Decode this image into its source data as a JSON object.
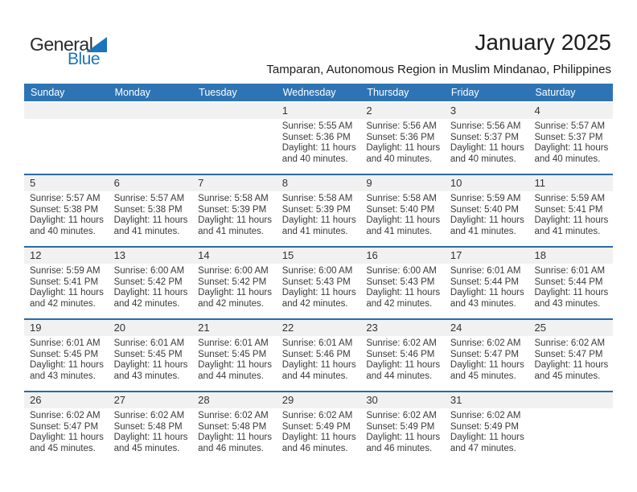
{
  "page": {
    "title": "January 2025",
    "subtitle": "Tamparan, Autonomous Region in Muslim Mindanao, Philippines"
  },
  "logo": {
    "part1": "General",
    "part2": "Blue"
  },
  "colors": {
    "header_bg": "#2E74B5",
    "divider": "#2A6BA8",
    "strip": "#F1F1F1",
    "logo_blue": "#1B75BC",
    "text_dark": "#3A3A3A"
  },
  "calendar": {
    "day_headers": [
      "Sunday",
      "Monday",
      "Tuesday",
      "Wednesday",
      "Thursday",
      "Friday",
      "Saturday"
    ],
    "weeks": [
      [
        null,
        null,
        null,
        {
          "n": "1",
          "lines": [
            "Sunrise: 5:55 AM",
            "Sunset: 5:36 PM",
            "Daylight: 11 hours",
            "and 40 minutes."
          ]
        },
        {
          "n": "2",
          "lines": [
            "Sunrise: 5:56 AM",
            "Sunset: 5:36 PM",
            "Daylight: 11 hours",
            "and 40 minutes."
          ]
        },
        {
          "n": "3",
          "lines": [
            "Sunrise: 5:56 AM",
            "Sunset: 5:37 PM",
            "Daylight: 11 hours",
            "and 40 minutes."
          ]
        },
        {
          "n": "4",
          "lines": [
            "Sunrise: 5:57 AM",
            "Sunset: 5:37 PM",
            "Daylight: 11 hours",
            "and 40 minutes."
          ]
        }
      ],
      [
        {
          "n": "5",
          "lines": [
            "Sunrise: 5:57 AM",
            "Sunset: 5:38 PM",
            "Daylight: 11 hours",
            "and 40 minutes."
          ]
        },
        {
          "n": "6",
          "lines": [
            "Sunrise: 5:57 AM",
            "Sunset: 5:38 PM",
            "Daylight: 11 hours",
            "and 41 minutes."
          ]
        },
        {
          "n": "7",
          "lines": [
            "Sunrise: 5:58 AM",
            "Sunset: 5:39 PM",
            "Daylight: 11 hours",
            "and 41 minutes."
          ]
        },
        {
          "n": "8",
          "lines": [
            "Sunrise: 5:58 AM",
            "Sunset: 5:39 PM",
            "Daylight: 11 hours",
            "and 41 minutes."
          ]
        },
        {
          "n": "9",
          "lines": [
            "Sunrise: 5:58 AM",
            "Sunset: 5:40 PM",
            "Daylight: 11 hours",
            "and 41 minutes."
          ]
        },
        {
          "n": "10",
          "lines": [
            "Sunrise: 5:59 AM",
            "Sunset: 5:40 PM",
            "Daylight: 11 hours",
            "and 41 minutes."
          ]
        },
        {
          "n": "11",
          "lines": [
            "Sunrise: 5:59 AM",
            "Sunset: 5:41 PM",
            "Daylight: 11 hours",
            "and 41 minutes."
          ]
        }
      ],
      [
        {
          "n": "12",
          "lines": [
            "Sunrise: 5:59 AM",
            "Sunset: 5:41 PM",
            "Daylight: 11 hours",
            "and 42 minutes."
          ]
        },
        {
          "n": "13",
          "lines": [
            "Sunrise: 6:00 AM",
            "Sunset: 5:42 PM",
            "Daylight: 11 hours",
            "and 42 minutes."
          ]
        },
        {
          "n": "14",
          "lines": [
            "Sunrise: 6:00 AM",
            "Sunset: 5:42 PM",
            "Daylight: 11 hours",
            "and 42 minutes."
          ]
        },
        {
          "n": "15",
          "lines": [
            "Sunrise: 6:00 AM",
            "Sunset: 5:43 PM",
            "Daylight: 11 hours",
            "and 42 minutes."
          ]
        },
        {
          "n": "16",
          "lines": [
            "Sunrise: 6:00 AM",
            "Sunset: 5:43 PM",
            "Daylight: 11 hours",
            "and 42 minutes."
          ]
        },
        {
          "n": "17",
          "lines": [
            "Sunrise: 6:01 AM",
            "Sunset: 5:44 PM",
            "Daylight: 11 hours",
            "and 43 minutes."
          ]
        },
        {
          "n": "18",
          "lines": [
            "Sunrise: 6:01 AM",
            "Sunset: 5:44 PM",
            "Daylight: 11 hours",
            "and 43 minutes."
          ]
        }
      ],
      [
        {
          "n": "19",
          "lines": [
            "Sunrise: 6:01 AM",
            "Sunset: 5:45 PM",
            "Daylight: 11 hours",
            "and 43 minutes."
          ]
        },
        {
          "n": "20",
          "lines": [
            "Sunrise: 6:01 AM",
            "Sunset: 5:45 PM",
            "Daylight: 11 hours",
            "and 43 minutes."
          ]
        },
        {
          "n": "21",
          "lines": [
            "Sunrise: 6:01 AM",
            "Sunset: 5:45 PM",
            "Daylight: 11 hours",
            "and 44 minutes."
          ]
        },
        {
          "n": "22",
          "lines": [
            "Sunrise: 6:01 AM",
            "Sunset: 5:46 PM",
            "Daylight: 11 hours",
            "and 44 minutes."
          ]
        },
        {
          "n": "23",
          "lines": [
            "Sunrise: 6:02 AM",
            "Sunset: 5:46 PM",
            "Daylight: 11 hours",
            "and 44 minutes."
          ]
        },
        {
          "n": "24",
          "lines": [
            "Sunrise: 6:02 AM",
            "Sunset: 5:47 PM",
            "Daylight: 11 hours",
            "and 45 minutes."
          ]
        },
        {
          "n": "25",
          "lines": [
            "Sunrise: 6:02 AM",
            "Sunset: 5:47 PM",
            "Daylight: 11 hours",
            "and 45 minutes."
          ]
        }
      ],
      [
        {
          "n": "26",
          "lines": [
            "Sunrise: 6:02 AM",
            "Sunset: 5:47 PM",
            "Daylight: 11 hours",
            "and 45 minutes."
          ]
        },
        {
          "n": "27",
          "lines": [
            "Sunrise: 6:02 AM",
            "Sunset: 5:48 PM",
            "Daylight: 11 hours",
            "and 45 minutes."
          ]
        },
        {
          "n": "28",
          "lines": [
            "Sunrise: 6:02 AM",
            "Sunset: 5:48 PM",
            "Daylight: 11 hours",
            "and 46 minutes."
          ]
        },
        {
          "n": "29",
          "lines": [
            "Sunrise: 6:02 AM",
            "Sunset: 5:49 PM",
            "Daylight: 11 hours",
            "and 46 minutes."
          ]
        },
        {
          "n": "30",
          "lines": [
            "Sunrise: 6:02 AM",
            "Sunset: 5:49 PM",
            "Daylight: 11 hours",
            "and 46 minutes."
          ]
        },
        {
          "n": "31",
          "lines": [
            "Sunrise: 6:02 AM",
            "Sunset: 5:49 PM",
            "Daylight: 11 hours",
            "and 47 minutes."
          ]
        },
        null
      ]
    ]
  }
}
